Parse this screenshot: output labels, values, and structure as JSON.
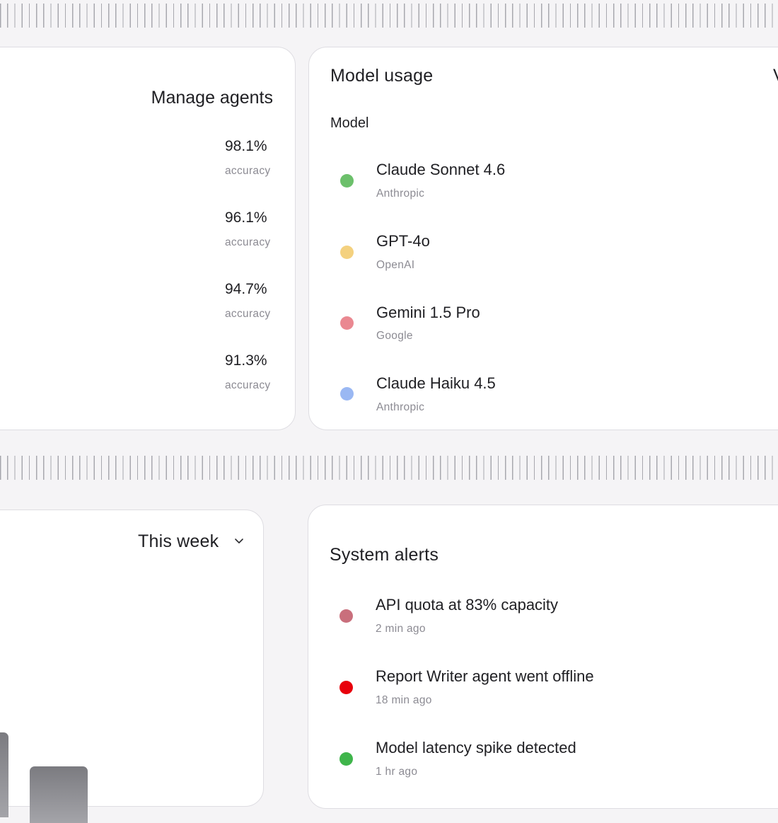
{
  "agents_card": {
    "manage_link": "Manage agents",
    "rows": [
      {
        "value": "98.1%",
        "label": "accuracy"
      },
      {
        "value": "96.1%",
        "label": "accuracy"
      },
      {
        "value": "94.7%",
        "label": "accuracy"
      },
      {
        "value": "91.3%",
        "label": "accuracy"
      }
    ]
  },
  "model_usage": {
    "title": "Model usage",
    "column_header": "Model",
    "models": [
      {
        "name": "Claude Sonnet 4.6",
        "provider": "Anthropic",
        "color": "#6cc06b"
      },
      {
        "name": "GPT-4o",
        "provider": "OpenAI",
        "color": "#f4d17f"
      },
      {
        "name": "Gemini 1.5 Pro",
        "provider": "Google",
        "color": "#ea8891"
      },
      {
        "name": "Claude Haiku 4.5",
        "provider": "Anthropic",
        "color": "#9ab8f3"
      }
    ]
  },
  "activity_card": {
    "period_select": "This week",
    "chevron_icon": "chevron-down-icon"
  },
  "system_alerts": {
    "title": "System alerts",
    "alerts": [
      {
        "text": "API quota at 83% capacity",
        "time": "2 min ago",
        "color": "#c96f7c"
      },
      {
        "text": "Report Writer agent went offline",
        "time": "18 min ago",
        "color": "#e8000b"
      },
      {
        "text": "Model latency spike detected",
        "time": "1 hr ago",
        "color": "#3fb54b"
      }
    ]
  }
}
